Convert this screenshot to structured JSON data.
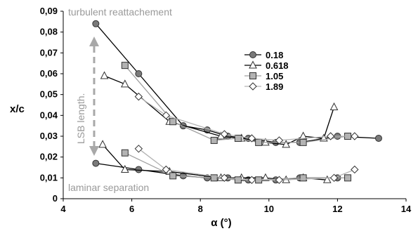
{
  "chart_data": {
    "type": "scatter",
    "xlabel": "α (°)",
    "ylabel": "x/c",
    "xlim": [
      4,
      14
    ],
    "ylim": [
      0,
      0.09
    ],
    "xticks": [
      4,
      6,
      8,
      10,
      12,
      14
    ],
    "yticks": [
      0,
      0.01,
      0.02,
      0.03,
      0.04,
      0.05,
      0.06,
      0.07,
      0.08,
      0.09
    ],
    "xtick_labels": [
      "4",
      "6",
      "8",
      "10",
      "12",
      "14"
    ],
    "ytick_labels": [
      "0",
      "0,01",
      "0,02",
      "0,03",
      "0,04",
      "0,05",
      "0,06",
      "0,07",
      "0,08",
      "0,09"
    ],
    "grid": false,
    "legend_position": "top-right",
    "annotations": {
      "turbulent": "turbulent reattachement",
      "laminar": "laminar separation",
      "lsb": "LSB length."
    },
    "series": [
      {
        "name": "0.18",
        "marker": "circle",
        "color": "#7a7a7a",
        "line_color": "#000000",
        "groups": [
          [
            [
              4.95,
              0.084
            ],
            [
              6.2,
              0.06
            ],
            [
              7.5,
              0.035
            ],
            [
              8.2,
              0.033
            ],
            [
              8.8,
              0.03
            ],
            [
              9.4,
              0.029
            ],
            [
              10.2,
              0.027
            ],
            [
              10.9,
              0.027
            ],
            [
              12,
              0.03
            ],
            [
              13.2,
              0.029
            ]
          ],
          [
            [
              4.95,
              0.017
            ],
            [
              6.2,
              0.014
            ],
            [
              7.5,
              0.011
            ],
            [
              8.2,
              0.01
            ],
            [
              8.8,
              0.01
            ],
            [
              9.4,
              0.009
            ],
            [
              10.2,
              0.009
            ],
            [
              10.9,
              0.01
            ],
            [
              12,
              0.01
            ]
          ]
        ]
      },
      {
        "name": "0.618",
        "marker": "triangle",
        "color": "#ffffff",
        "line_color": "#000000",
        "groups": [
          [
            [
              5.2,
              0.059
            ],
            [
              5.8,
              0.055
            ],
            [
              7.1,
              0.037
            ],
            [
              8.6,
              0.03
            ],
            [
              9.2,
              0.029
            ],
            [
              9.9,
              0.027
            ],
            [
              10.5,
              0.026
            ],
            [
              11.0,
              0.03
            ],
            [
              11.6,
              0.029
            ],
            [
              11.9,
              0.044
            ]
          ],
          [
            [
              5.15,
              0.026
            ],
            [
              5.8,
              0.014
            ],
            [
              7.1,
              0.013
            ],
            [
              8.6,
              0.01
            ],
            [
              9.2,
              0.01
            ],
            [
              9.9,
              0.01
            ],
            [
              10.5,
              0.009
            ],
            [
              11.0,
              0.01
            ],
            [
              11.7,
              0.009
            ]
          ]
        ]
      },
      {
        "name": "1.05",
        "marker": "square",
        "color": "#b3b3b3",
        "line_color": "#a0a0a0",
        "groups": [
          [
            [
              5.8,
              0.064
            ],
            [
              7.2,
              0.037
            ],
            [
              8.4,
              0.028
            ],
            [
              9.1,
              0.029
            ],
            [
              9.7,
              0.027
            ],
            [
              11.0,
              0.027
            ],
            [
              12.3,
              0.03
            ]
          ],
          [
            [
              5.8,
              0.022
            ],
            [
              7.2,
              0.011
            ],
            [
              8.4,
              0.01
            ],
            [
              9.1,
              0.009
            ],
            [
              9.7,
              0.009
            ],
            [
              11.0,
              0.01
            ],
            [
              12.3,
              0.01
            ]
          ]
        ]
      },
      {
        "name": "1.89",
        "marker": "diamond",
        "color": "#ffffff",
        "line_color": "#b3b3b3",
        "groups": [
          [
            [
              6.2,
              0.049
            ],
            [
              7.0,
              0.04
            ],
            [
              8.7,
              0.031
            ],
            [
              9.5,
              0.029
            ],
            [
              10.3,
              0.028
            ],
            [
              11.8,
              0.03
            ],
            [
              12.5,
              0.03
            ]
          ],
          [
            [
              6.2,
              0.024
            ],
            [
              7.0,
              0.014
            ],
            [
              8.7,
              0.01
            ],
            [
              9.5,
              0.009
            ],
            [
              10.3,
              0.009
            ],
            [
              11.9,
              0.01
            ],
            [
              12.5,
              0.014
            ]
          ]
        ]
      }
    ]
  }
}
